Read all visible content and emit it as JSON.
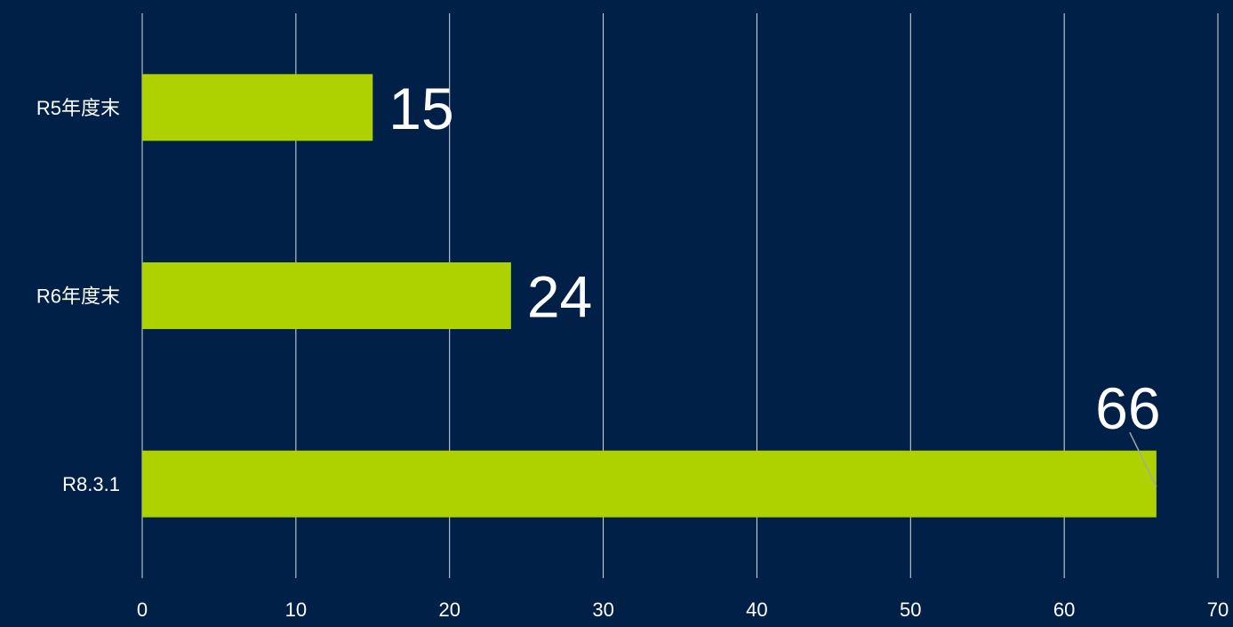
{
  "chart_data": {
    "type": "bar",
    "orientation": "horizontal",
    "categories": [
      "R5年度末",
      "R6年度末",
      "R8.3.1"
    ],
    "values": [
      15,
      24,
      66
    ],
    "data_labels": [
      "15",
      "24",
      "66"
    ],
    "xlim": [
      0,
      70
    ],
    "x_ticks": [
      0,
      10,
      20,
      30,
      40,
      50,
      60,
      70
    ],
    "x_tick_labels": [
      "0",
      "10",
      "20",
      "30",
      "40",
      "50",
      "60",
      "70"
    ],
    "grid": true,
    "title": "",
    "xlabel": "",
    "ylabel": "",
    "colors": {
      "background": "#002047",
      "bar": "#AED200",
      "grid": "#FFFFFF",
      "text": "#FFFFFF",
      "leader_line": "#A6A6A6"
    }
  }
}
